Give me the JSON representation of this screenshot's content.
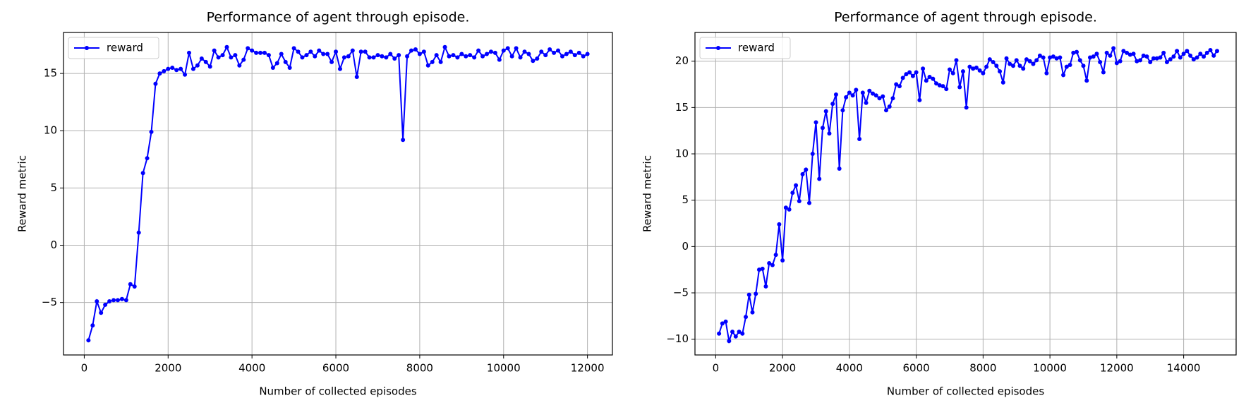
{
  "chart_data": [
    {
      "type": "line",
      "title": "Performance of agent through episode.",
      "xlabel": "Number of collected episodes",
      "ylabel": "Reward metric",
      "x": [
        100,
        200,
        300,
        400,
        500,
        600,
        700,
        800,
        900,
        1000,
        1100,
        1200,
        1300,
        1400,
        1500,
        1600,
        1700,
        1800,
        1900,
        2000,
        2100,
        2200,
        2300,
        2400,
        2500,
        2600,
        2700,
        2800,
        2900,
        3000,
        3100,
        3200,
        3300,
        3400,
        3500,
        3600,
        3700,
        3800,
        3900,
        4000,
        4100,
        4200,
        4300,
        4400,
        4500,
        4600,
        4700,
        4800,
        4900,
        5000,
        5100,
        5200,
        5300,
        5400,
        5500,
        5600,
        5700,
        5800,
        5900,
        6000,
        6100,
        6200,
        6300,
        6400,
        6500,
        6600,
        6700,
        6800,
        6900,
        7000,
        7100,
        7200,
        7300,
        7400,
        7500,
        7600,
        7700,
        7800,
        7900,
        8000,
        8100,
        8200,
        8300,
        8400,
        8500,
        8600,
        8700,
        8800,
        8900,
        9000,
        9100,
        9200,
        9300,
        9400,
        9500,
        9600,
        9700,
        9800,
        9900,
        10000,
        10100,
        10200,
        10300,
        10400,
        10500,
        10600,
        10700,
        10800,
        10900,
        11000,
        11100,
        11200,
        11300,
        11400,
        11500,
        11600,
        11700,
        11800,
        11900,
        12000
      ],
      "series": [
        {
          "name": "reward",
          "color": "#0000ff",
          "values": [
            -8.3,
            -7,
            -4.9,
            -5.9,
            -5.2,
            -4.9,
            -4.8,
            -4.8,
            -4.7,
            -4.8,
            -3.4,
            -3.6,
            1.1,
            6.3,
            7.6,
            9.9,
            14.1,
            15,
            15.2,
            15.4,
            15.5,
            15.3,
            15.4,
            14.9,
            16.8,
            15.4,
            15.7,
            16.3,
            16,
            15.6,
            17,
            16.4,
            16.6,
            17.3,
            16.4,
            16.6,
            15.7,
            16.2,
            17.2,
            17,
            16.8,
            16.8,
            16.8,
            16.6,
            15.5,
            15.9,
            16.7,
            16,
            15.5,
            17.2,
            16.9,
            16.4,
            16.6,
            16.9,
            16.5,
            17,
            16.7,
            16.7,
            16,
            16.9,
            15.4,
            16.4,
            16.5,
            17,
            14.7,
            16.9,
            16.9,
            16.4,
            16.4,
            16.6,
            16.5,
            16.4,
            16.7,
            16.3,
            16.6,
            9.2,
            16.5,
            17,
            17.1,
            16.7,
            16.9,
            15.7,
            16,
            16.6,
            16,
            17.3,
            16.5,
            16.6,
            16.4,
            16.7,
            16.5,
            16.6,
            16.4,
            17,
            16.5,
            16.7,
            16.9,
            16.8,
            16.2,
            17,
            17.2,
            16.5,
            17.2,
            16.4,
            16.9,
            16.7,
            16.1,
            16.3,
            16.9,
            16.6,
            17.1,
            16.8,
            17,
            16.5,
            16.7,
            16.9,
            16.6,
            16.8,
            16.5,
            16.7
          ]
        }
      ],
      "xlim": [
        -495,
        12595
      ],
      "xticks": [
        0,
        2000,
        4000,
        6000,
        8000,
        10000,
        12000
      ],
      "ylim": [
        -9.58,
        18.58
      ],
      "yticks": [
        {
          "value": -5,
          "label": "−5"
        },
        0,
        5,
        10,
        15
      ],
      "grid": true,
      "legend": "upper left",
      "marker": true
    },
    {
      "type": "line",
      "title": "Performance of agent through episode.",
      "xlabel": "Number of collected episodes",
      "ylabel": "Reward metric",
      "x": [
        100,
        200,
        300,
        400,
        500,
        600,
        700,
        800,
        900,
        1000,
        1100,
        1200,
        1300,
        1400,
        1500,
        1600,
        1700,
        1800,
        1900,
        2000,
        2100,
        2200,
        2300,
        2400,
        2500,
        2600,
        2700,
        2800,
        2900,
        3000,
        3100,
        3200,
        3300,
        3400,
        3500,
        3600,
        3700,
        3800,
        3900,
        4000,
        4100,
        4200,
        4300,
        4400,
        4500,
        4600,
        4700,
        4800,
        4900,
        5000,
        5100,
        5200,
        5300,
        5400,
        5500,
        5600,
        5700,
        5800,
        5900,
        6000,
        6100,
        6200,
        6300,
        6400,
        6500,
        6600,
        6700,
        6800,
        6900,
        7000,
        7100,
        7200,
        7300,
        7400,
        7500,
        7600,
        7700,
        7800,
        7900,
        8000,
        8100,
        8200,
        8300,
        8400,
        8500,
        8600,
        8700,
        8800,
        8900,
        9000,
        9100,
        9200,
        9300,
        9400,
        9500,
        9600,
        9700,
        9800,
        9900,
        10000,
        10100,
        10200,
        10300,
        10400,
        10500,
        10600,
        10700,
        10800,
        10900,
        11000,
        11100,
        11200,
        11300,
        11400,
        11500,
        11600,
        11700,
        11800,
        11900,
        12000,
        12100,
        12200,
        12300,
        12400,
        12500,
        12600,
        12700,
        12800,
        12900,
        13000,
        13100,
        13200,
        13300,
        13400,
        13500,
        13600,
        13700,
        13800,
        13900,
        14000,
        14100,
        14200,
        14300,
        14400,
        14500,
        14600,
        14700,
        14800,
        14900,
        15000
      ],
      "series": [
        {
          "name": "reward",
          "color": "#0000ff",
          "values": [
            -9.4,
            -8.3,
            -8.1,
            -10.2,
            -9.2,
            -9.7,
            -9.2,
            -9.4,
            -7.6,
            -5.2,
            -7.1,
            -5.1,
            -2.5,
            -2.4,
            -4.3,
            -1.8,
            -2,
            -0.9,
            2.4,
            -1.5,
            4.2,
            4,
            5.8,
            6.6,
            4.9,
            7.8,
            8.3,
            4.7,
            10,
            13.4,
            7.3,
            12.8,
            14.6,
            12.2,
            15.4,
            16.4,
            8.4,
            14.7,
            16.1,
            16.6,
            16.3,
            16.9,
            11.6,
            16.6,
            15.5,
            16.8,
            16.5,
            16.3,
            16,
            16.2,
            14.7,
            15.1,
            16,
            17.5,
            17.3,
            18.2,
            18.6,
            18.8,
            18.4,
            18.8,
            15.8,
            19.2,
            17.9,
            18.3,
            18.1,
            17.6,
            17.4,
            17.3,
            17,
            19.1,
            18.7,
            20.1,
            17.2,
            18.9,
            15,
            19.4,
            19.2,
            19.3,
            19,
            18.7,
            19.4,
            20.2,
            19.9,
            19.5,
            18.9,
            17.7,
            20.3,
            19.7,
            19.5,
            20.1,
            19.5,
            19.2,
            20.2,
            20,
            19.7,
            20.1,
            20.6,
            20.4,
            18.7,
            20.4,
            20.5,
            20.3,
            20.4,
            18.5,
            19.4,
            19.6,
            20.9,
            21,
            20.1,
            19.5,
            17.9,
            20.4,
            20.5,
            20.8,
            19.9,
            18.8,
            20.9,
            20.6,
            21.4,
            19.8,
            20,
            21.1,
            20.9,
            20.7,
            20.8,
            20,
            20.1,
            20.6,
            20.5,
            19.9,
            20.3,
            20.3,
            20.4,
            20.9,
            19.9,
            20.2,
            20.5,
            21.1,
            20.4,
            20.8,
            21.1,
            20.6,
            20.2,
            20.4,
            20.8,
            20.5,
            20.9,
            21.2,
            20.6,
            21.1
          ]
        }
      ],
      "xlim": [
        -620,
        15570
      ],
      "xticks": [
        0,
        2000,
        4000,
        6000,
        8000,
        10000,
        12000,
        14000
      ],
      "ylim": [
        -11.7,
        23.1
      ],
      "yticks": [
        {
          "value": -10,
          "label": "−10"
        },
        {
          "value": -5,
          "label": "−5"
        },
        0,
        5,
        10,
        15,
        20
      ],
      "grid": true,
      "legend": "upper left",
      "marker": true
    }
  ]
}
